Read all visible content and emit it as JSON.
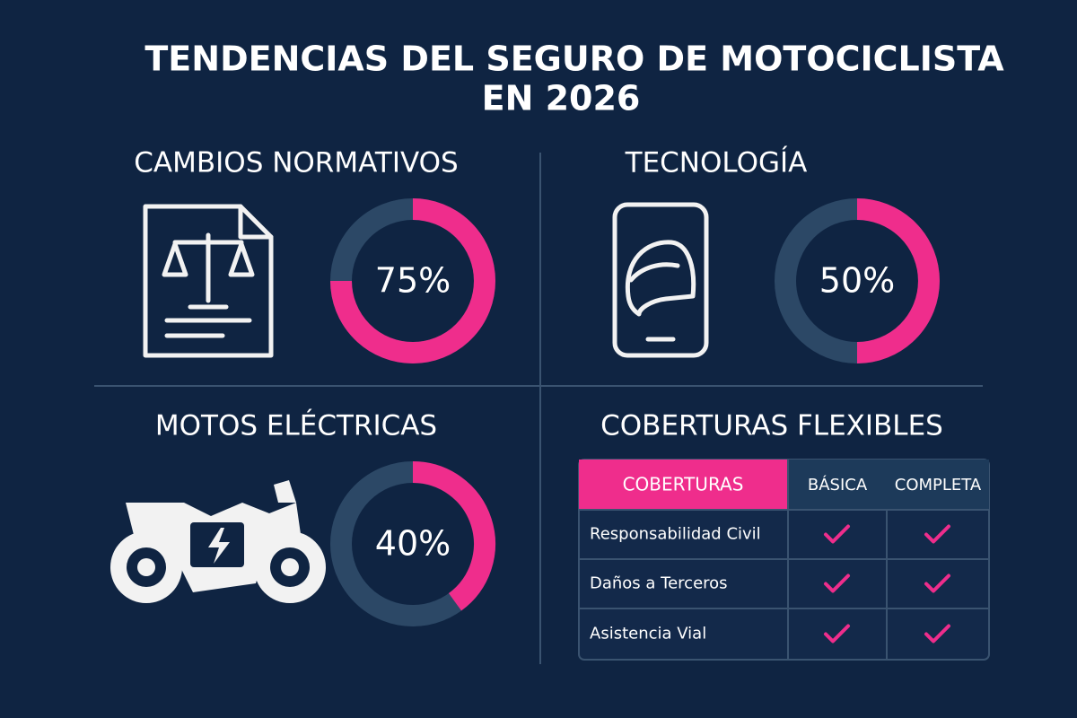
{
  "title": [
    "TENDENCIAS DEL SEGURO DE MOTOCICLISTA",
    "EN 2026"
  ],
  "chart_data": [
    {
      "type": "donut",
      "title": "CAMBIOS NORMATIVOS",
      "values": [
        75
      ],
      "value_labels": [
        "75%"
      ],
      "color": "#ef2d8c",
      "track_color": "#2c4866"
    },
    {
      "type": "donut",
      "title": "TECNOLOGÍA",
      "values": [
        50
      ],
      "value_labels": [
        "50%"
      ],
      "color": "#ef2d8c",
      "track_color": "#2c4866"
    },
    {
      "type": "donut",
      "title": "MOTOS ELÉCTRICAS",
      "values": [
        40
      ],
      "value_labels": [
        "40%"
      ],
      "color": "#ef2d8c",
      "track_color": "#2c4866"
    }
  ],
  "table": {
    "title": "COBERTURAS FLEXIBLES",
    "header": [
      "COBERTURAS",
      "BÁSICA",
      "COMPLETA"
    ],
    "rows": [
      {
        "label": "Responsabilidad Civil",
        "checks": [
          true,
          true
        ]
      },
      {
        "label": "Daños a Terceros",
        "checks": [
          true,
          true
        ]
      },
      {
        "label": "Asistencia Vial",
        "checks": [
          true,
          true
        ]
      }
    ]
  }
}
